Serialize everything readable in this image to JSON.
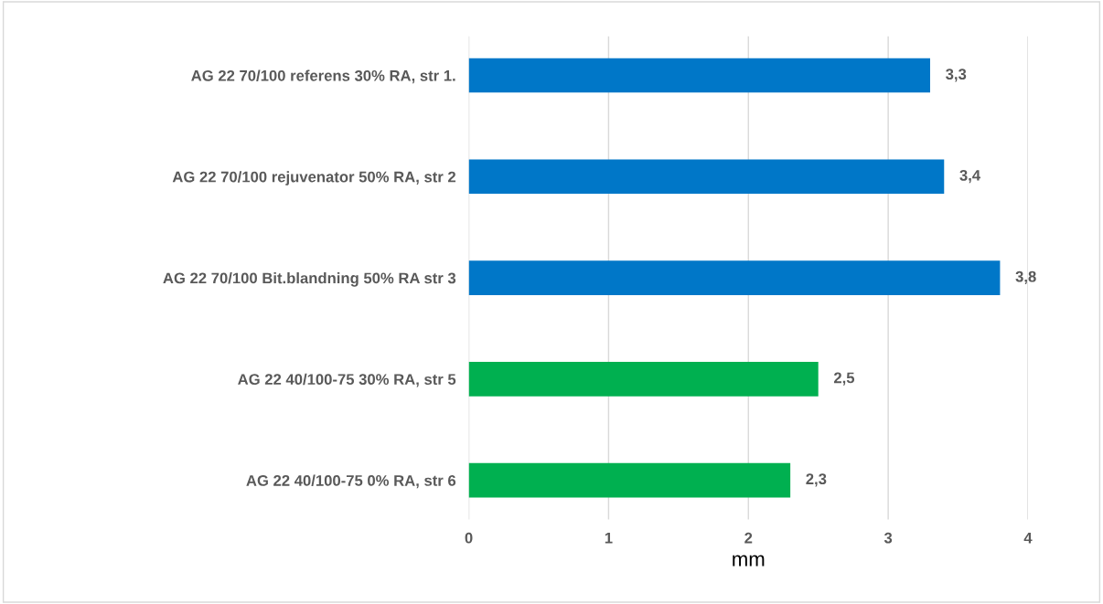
{
  "chart_data": {
    "type": "bar",
    "orientation": "horizontal",
    "xlabel": "mm",
    "categories": [
      "AG 22 70/100 referens 30% RA, str 1.",
      "AG 22 70/100 rejuvenator 50% RA, str 2",
      "AG 22 70/100 Bit.blandning 50% RA str 3",
      "AG 22 40/100-75 30% RA, str 5",
      "AG 22 40/100-75 0% RA, str 6"
    ],
    "values": [
      3.3,
      3.4,
      3.8,
      2.5,
      2.3
    ],
    "colors": [
      "#0077c8",
      "#0077c8",
      "#0077c8",
      "#00b050",
      "#00b050"
    ],
    "value_labels": [
      "3,3",
      "3,4",
      "3,8",
      "2,5",
      "2,3"
    ],
    "xlim": [
      0,
      4
    ],
    "xticks": [
      0,
      1,
      2,
      3,
      4
    ],
    "grid": "x",
    "legend": false
  }
}
